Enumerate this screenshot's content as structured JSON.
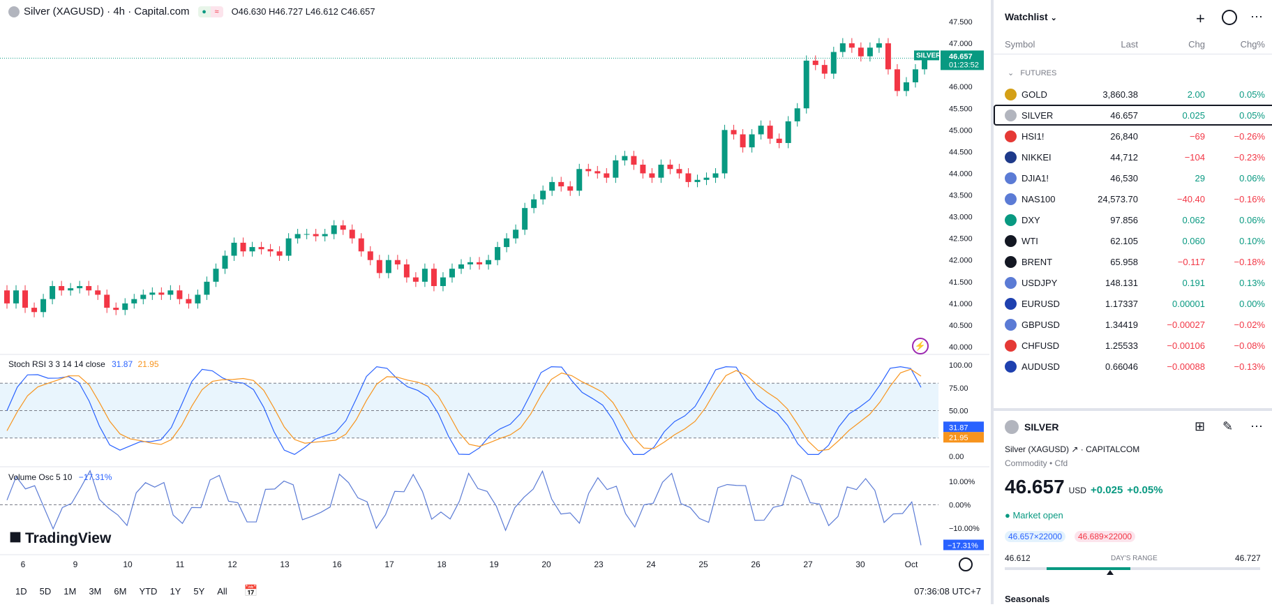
{
  "header": {
    "title": "Silver (XAGUSD) · 4h · Capital.com",
    "ohlc": "O46.630 H46.727 L46.612 C46.657"
  },
  "price_axis": [
    "47.500",
    "47.000",
    "46.500",
    "46.000",
    "45.500",
    "45.000",
    "44.500",
    "44.000",
    "43.500",
    "43.000",
    "42.500",
    "42.000",
    "41.500",
    "41.000",
    "40.500",
    "40.000"
  ],
  "current_price": {
    "label": "SILVER",
    "value": "46.657",
    "countdown": "01:23:52"
  },
  "stoch": {
    "title": "Stoch RSI 3 3 14 14 close",
    "k": "31.87",
    "d": "21.95",
    "axis": [
      "100.00",
      "75.00",
      "50.00",
      "25.00",
      "0.00"
    ],
    "k_label": "31.87",
    "d_label": "21.95"
  },
  "volume_osc": {
    "title": "Volume Osc 5 10",
    "value": "−17.31%",
    "axis": [
      "10.00%",
      "0.00%",
      "−10.00%"
    ],
    "label": "−17.31%"
  },
  "brand": "TradingView",
  "time_axis": [
    "6",
    "9",
    "10",
    "11",
    "12",
    "13",
    "16",
    "17",
    "18",
    "19",
    "20",
    "23",
    "24",
    "25",
    "26",
    "27",
    "30",
    "Oct"
  ],
  "timeframes": [
    "1D",
    "5D",
    "1M",
    "3M",
    "6M",
    "YTD",
    "1Y",
    "5Y",
    "All"
  ],
  "clock": "07:36:08 UTC+7",
  "watchlist": {
    "title": "Watchlist",
    "columns": [
      "Symbol",
      "Last",
      "Chg",
      "Chg%"
    ],
    "section": "FUTURES",
    "rows": [
      {
        "name": "GOLD",
        "last": "3,860.38",
        "chg": "2.00",
        "chgp": "0.05%",
        "dir": "up",
        "icon": "#d4a017"
      },
      {
        "name": "SILVER",
        "last": "46.657",
        "chg": "0.025",
        "chgp": "0.05%",
        "dir": "up",
        "icon": "#b2b5be"
      },
      {
        "name": "HSI1!",
        "last": "26,840",
        "chg": "−69",
        "chgp": "−0.26%",
        "dir": "dn",
        "icon": "#e53935"
      },
      {
        "name": "NIKKEI",
        "last": "44,712",
        "chg": "−104",
        "chgp": "−0.23%",
        "dir": "dn",
        "icon": "#1e3a8a"
      },
      {
        "name": "DJIA1!",
        "last": "46,530",
        "chg": "29",
        "chgp": "0.06%",
        "dir": "up",
        "icon": "#5b7bd5"
      },
      {
        "name": "NAS100",
        "last": "24,573.70",
        "chg": "−40.40",
        "chgp": "−0.16%",
        "dir": "dn",
        "icon": "#5b7bd5"
      },
      {
        "name": "DXY",
        "last": "97.856",
        "chg": "0.062",
        "chgp": "0.06%",
        "dir": "up",
        "icon": "#089981"
      },
      {
        "name": "WTI",
        "last": "62.105",
        "chg": "0.060",
        "chgp": "0.10%",
        "dir": "up",
        "icon": "#131722"
      },
      {
        "name": "BRENT",
        "last": "65.958",
        "chg": "−0.117",
        "chgp": "−0.18%",
        "dir": "dn",
        "icon": "#131722"
      },
      {
        "name": "USDJPY",
        "last": "148.131",
        "chg": "0.191",
        "chgp": "0.13%",
        "dir": "up",
        "icon": "#5b7bd5"
      },
      {
        "name": "EURUSD",
        "last": "1.17337",
        "chg": "0.00001",
        "chgp": "0.00%",
        "dir": "up",
        "icon": "#1e40af"
      },
      {
        "name": "GBPUSD",
        "last": "1.34419",
        "chg": "−0.00027",
        "chgp": "−0.02%",
        "dir": "dn",
        "icon": "#5b7bd5"
      },
      {
        "name": "CHFUSD",
        "last": "1.25533",
        "chg": "−0.00106",
        "chgp": "−0.08%",
        "dir": "dn",
        "icon": "#e53935"
      },
      {
        "name": "AUDUSD",
        "last": "0.66046",
        "chg": "−0.00088",
        "chgp": "−0.13%",
        "dir": "dn",
        "icon": "#1e40af"
      }
    ]
  },
  "detail": {
    "symbol": "SILVER",
    "full_name": "Silver (XAGUSD)",
    "exchange": "CAPITALCOM",
    "type": "Commodity • Cfd",
    "price": "46.657",
    "currency": "USD",
    "change": "+0.025",
    "change_pct": "+0.05%",
    "status": "Market open",
    "bid": "46.657×22000",
    "ask": "46.689×22000",
    "range_low": "46.612",
    "range_label": "DAY'S RANGE",
    "range_high": "46.727",
    "seasonals": "Seasonals"
  },
  "colors": {
    "up": "#089981",
    "down": "#f23645",
    "stoch_k": "#2962ff",
    "stoch_d": "#f7941d",
    "osc": "#5b7bd5"
  }
}
